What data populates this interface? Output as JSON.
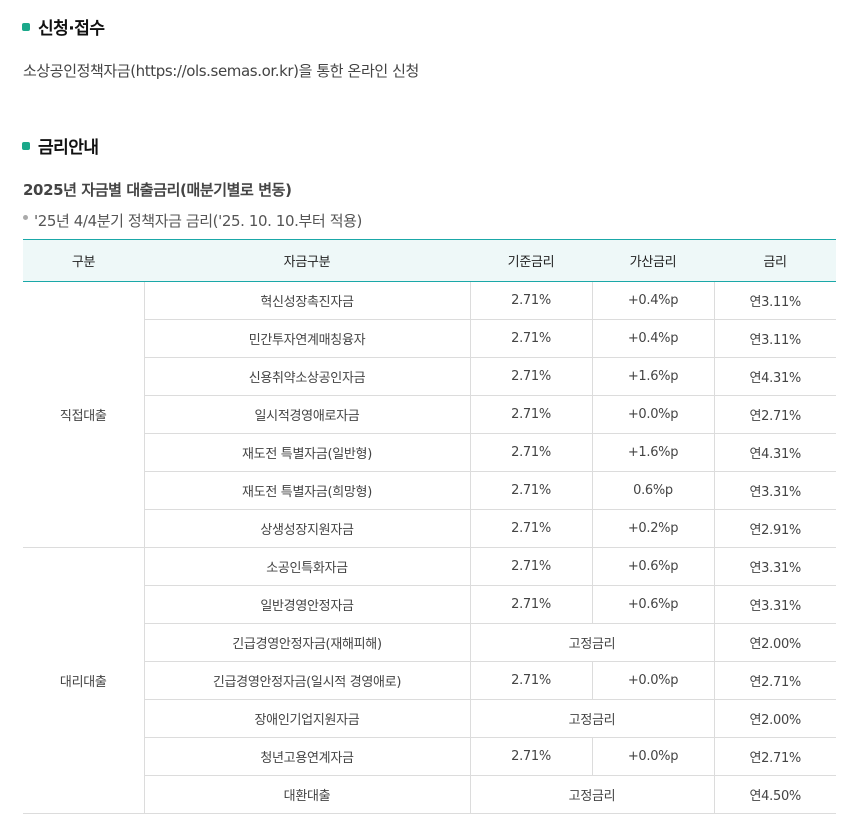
{
  "section1": {
    "title": "신청·접수",
    "text": "소상공인정책자금(https://ols.semas.or.kr)을 통한 온라인 신청"
  },
  "section2": {
    "title": "금리안내",
    "subtitle": "2025년 자금별 대출금리(매분기별로 변동)",
    "note": "'25년 4/4분기 정책자금 금리('25. 10. 10.부터 적용)"
  },
  "colors": {
    "accent": "#1aa88a",
    "header_bg": "#eef8f8"
  },
  "table": {
    "headers": [
      "구분",
      "자금구분",
      "기준금리",
      "가산금리",
      "금리"
    ],
    "groups": [
      {
        "name": "직접대출",
        "rows": [
          {
            "fund": "혁신성장촉진자금",
            "base": "2.71%",
            "add": "+0.4%p",
            "rate": "연3.11%"
          },
          {
            "fund": "민간투자연계매칭융자",
            "base": "2.71%",
            "add": "+0.4%p",
            "rate": "연3.11%"
          },
          {
            "fund": "신용취약소상공인자금",
            "base": "2.71%",
            "add": "+1.6%p",
            "rate": "연4.31%"
          },
          {
            "fund": "일시적경영애로자금",
            "base": "2.71%",
            "add": "+0.0%p",
            "rate": "연2.71%"
          },
          {
            "fund": "재도전 특별자금(일반형)",
            "base": "2.71%",
            "add": "+1.6%p",
            "rate": "연4.31%"
          },
          {
            "fund": "재도전 특별자금(희망형)",
            "base": "2.71%",
            "add": "0.6%p",
            "rate": "연3.31%"
          },
          {
            "fund": "상생성장지원자금",
            "base": "2.71%",
            "add": "+0.2%p",
            "rate": "연2.91%"
          }
        ]
      },
      {
        "name": "대리대출",
        "rows": [
          {
            "fund": "소공인특화자금",
            "base": "2.71%",
            "add": "+0.6%p",
            "rate": "연3.31%"
          },
          {
            "fund": "일반경영안정자금",
            "base": "2.71%",
            "add": "+0.6%p",
            "rate": "연3.31%"
          },
          {
            "fund": "긴급경영안정자금(재해피해)",
            "fixed": "고정금리",
            "rate": "연2.00%"
          },
          {
            "fund": "긴급경영안정자금(일시적 경영애로)",
            "base": "2.71%",
            "add": "+0.0%p",
            "rate": "연2.71%"
          },
          {
            "fund": "장애인기업지원자금",
            "fixed": "고정금리",
            "rate": "연2.00%"
          },
          {
            "fund": "청년고용연계자금",
            "base": "2.71%",
            "add": "+0.0%p",
            "rate": "연2.71%"
          },
          {
            "fund": "대환대출",
            "fixed": "고정금리",
            "rate": "연4.50%"
          }
        ]
      }
    ]
  }
}
